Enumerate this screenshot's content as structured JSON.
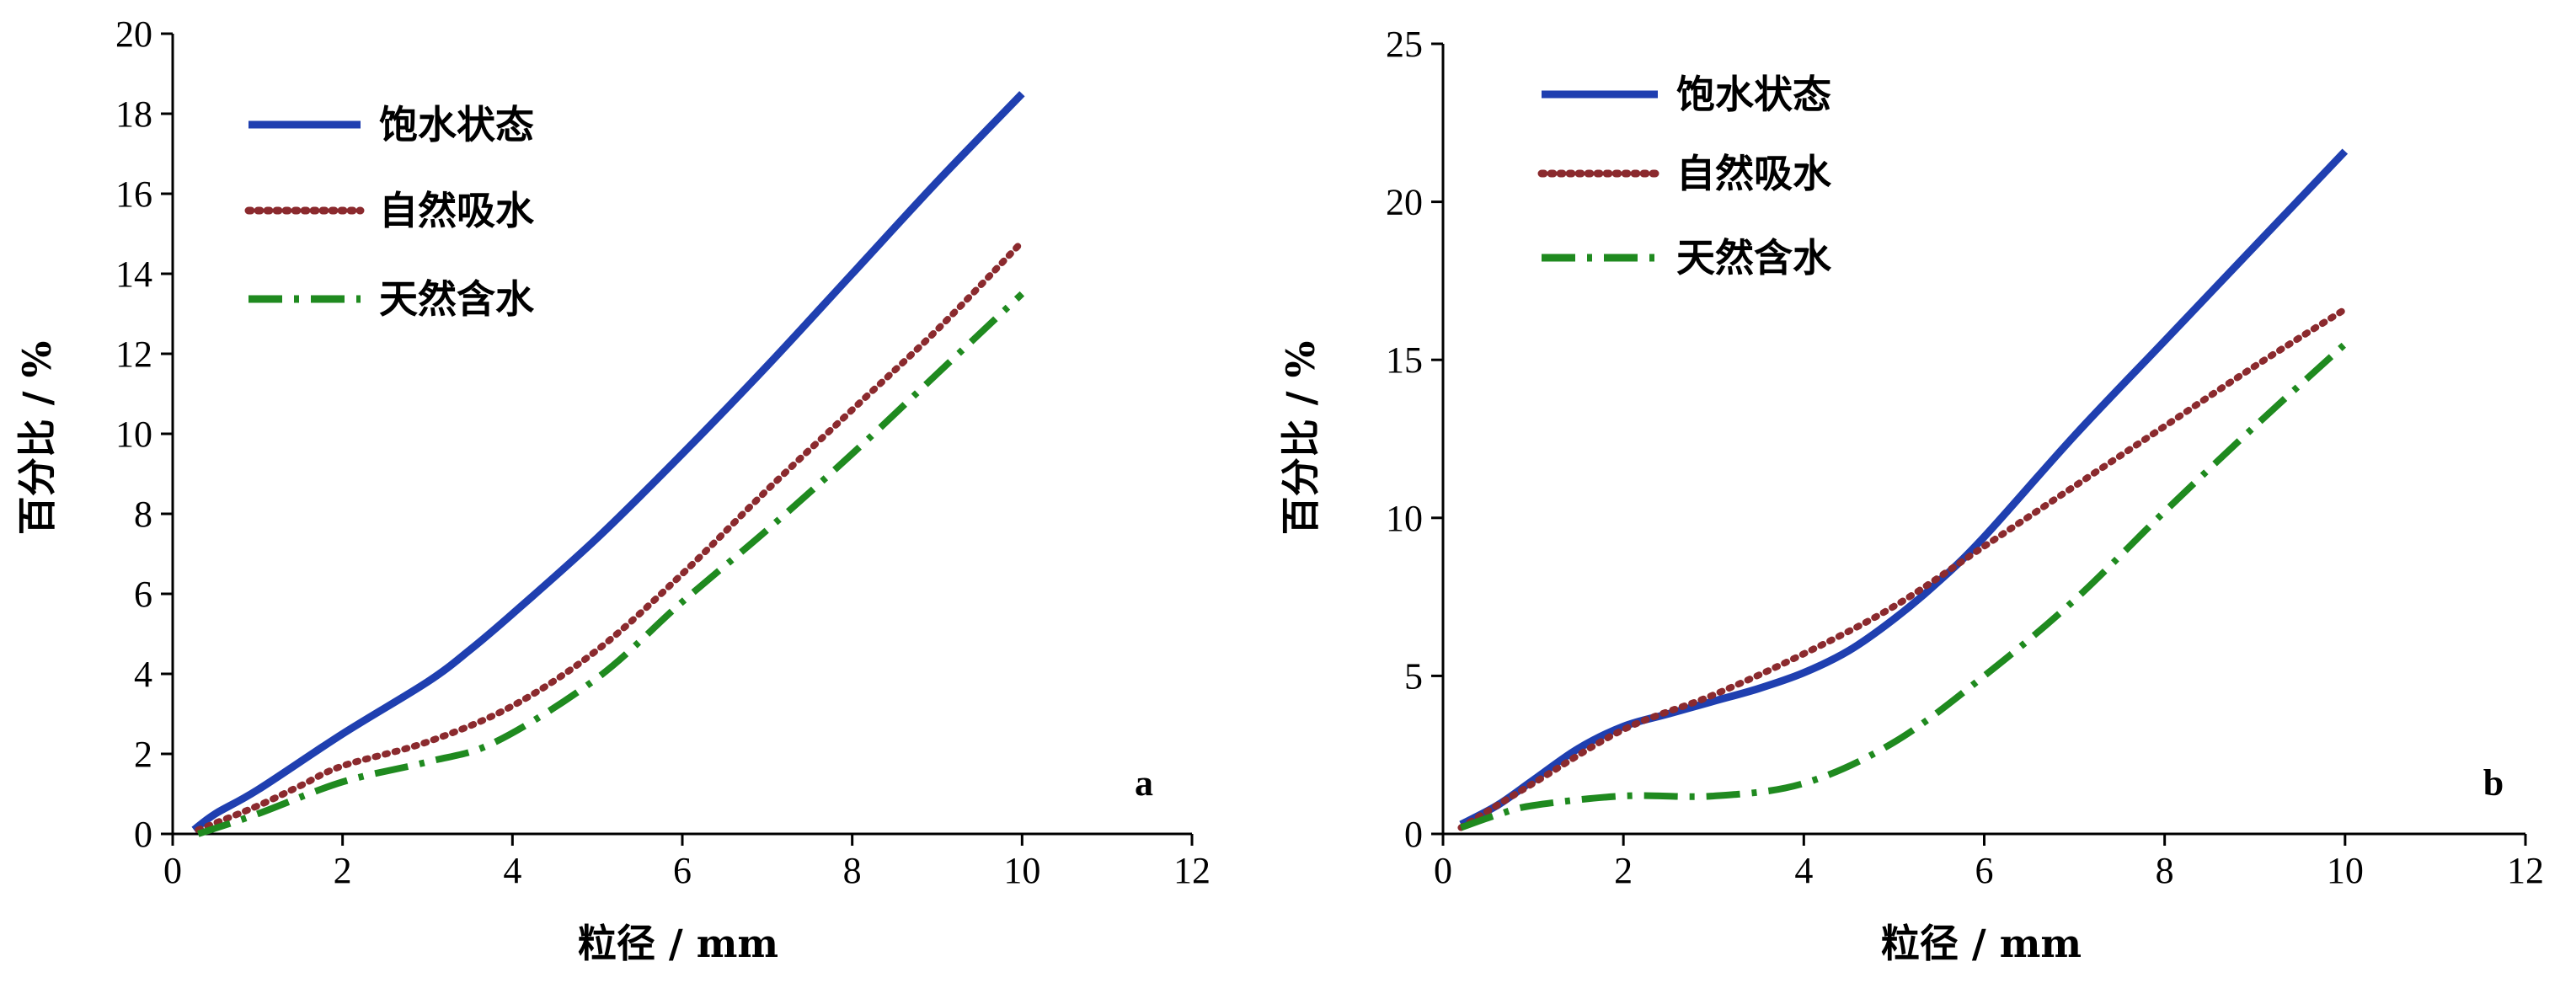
{
  "chart_data": [
    {
      "type": "line",
      "panel_label": "a",
      "xlabel": "粒径 / mm",
      "ylabel": "百分比 / %",
      "xlim": [
        0,
        12
      ],
      "ylim": [
        0,
        20
      ],
      "xticks": [
        0,
        2,
        4,
        6,
        8,
        10,
        12
      ],
      "yticks": [
        0,
        2,
        4,
        6,
        8,
        10,
        12,
        14,
        16,
        18,
        20
      ],
      "grid": false,
      "legend_position": "top-left",
      "series": [
        {
          "name": "饱水状态",
          "color": "#1f3fb0",
          "style": "solid",
          "points": [
            [
              0.25,
              0.1
            ],
            [
              0.5,
              0.5
            ],
            [
              1,
              1.1
            ],
            [
              2,
              2.5
            ],
            [
              3,
              3.8
            ],
            [
              3.5,
              4.6
            ],
            [
              4,
              5.5
            ],
            [
              5,
              7.4
            ],
            [
              6,
              9.5
            ],
            [
              7,
              11.7
            ],
            [
              8,
              14.0
            ],
            [
              9,
              16.3
            ],
            [
              10,
              18.5
            ]
          ]
        },
        {
          "name": "自然吸水",
          "color": "#8b2a2e",
          "style": "dotted",
          "points": [
            [
              0.3,
              0.1
            ],
            [
              1,
              0.7
            ],
            [
              1.5,
              1.2
            ],
            [
              2,
              1.7
            ],
            [
              3,
              2.3
            ],
            [
              4,
              3.2
            ],
            [
              5,
              4.6
            ],
            [
              6,
              6.5
            ],
            [
              7,
              8.6
            ],
            [
              8,
              10.6
            ],
            [
              9,
              12.6
            ],
            [
              10,
              14.8
            ]
          ]
        },
        {
          "name": "天然含水",
          "color": "#1f8a1f",
          "style": "dashdot",
          "points": [
            [
              0.3,
              0.0
            ],
            [
              1,
              0.5
            ],
            [
              2,
              1.3
            ],
            [
              3,
              1.8
            ],
            [
              3.8,
              2.3
            ],
            [
              5,
              3.9
            ],
            [
              6,
              5.8
            ],
            [
              7,
              7.6
            ],
            [
              8,
              9.5
            ],
            [
              9,
              11.5
            ],
            [
              10,
              13.5
            ]
          ]
        }
      ]
    },
    {
      "type": "line",
      "panel_label": "b",
      "xlabel": "粒径 / mm",
      "ylabel": "百分比 / %",
      "xlim": [
        0,
        12
      ],
      "ylim": [
        0,
        25
      ],
      "xticks": [
        0,
        2,
        4,
        6,
        8,
        10,
        12
      ],
      "yticks": [
        0,
        5,
        10,
        15,
        20,
        25
      ],
      "grid": false,
      "legend_position": "top-left",
      "series": [
        {
          "name": "饱水状态",
          "color": "#1f3fb0",
          "style": "solid",
          "points": [
            [
              0.2,
              0.3
            ],
            [
              0.6,
              0.9
            ],
            [
              1,
              1.7
            ],
            [
              1.5,
              2.7
            ],
            [
              2,
              3.4
            ],
            [
              2.5,
              3.8
            ],
            [
              3,
              4.2
            ],
            [
              3.5,
              4.6
            ],
            [
              4,
              5.1
            ],
            [
              4.5,
              5.8
            ],
            [
              5,
              6.8
            ],
            [
              5.5,
              8.0
            ],
            [
              6,
              9.4
            ],
            [
              7,
              12.6
            ],
            [
              8,
              15.6
            ],
            [
              9,
              18.6
            ],
            [
              10,
              21.6
            ]
          ]
        },
        {
          "name": "自然吸水",
          "color": "#8b2a2e",
          "style": "dotted",
          "points": [
            [
              0.2,
              0.2
            ],
            [
              1,
              1.6
            ],
            [
              2,
              3.3
            ],
            [
              3,
              4.4
            ],
            [
              4,
              5.7
            ],
            [
              5,
              7.2
            ],
            [
              6,
              9.1
            ],
            [
              7,
              11.0
            ],
            [
              8,
              12.9
            ],
            [
              9,
              14.8
            ],
            [
              10,
              16.6
            ]
          ]
        },
        {
          "name": "天然含水",
          "color": "#1f8a1f",
          "style": "dashdot",
          "points": [
            [
              0.2,
              0.2
            ],
            [
              0.6,
              0.6
            ],
            [
              1,
              0.9
            ],
            [
              2,
              1.2
            ],
            [
              3,
              1.2
            ],
            [
              4,
              1.6
            ],
            [
              5,
              2.9
            ],
            [
              6,
              5.0
            ],
            [
              7,
              7.4
            ],
            [
              8,
              10.2
            ],
            [
              9,
              12.9
            ],
            [
              10,
              15.5
            ]
          ]
        }
      ]
    }
  ]
}
